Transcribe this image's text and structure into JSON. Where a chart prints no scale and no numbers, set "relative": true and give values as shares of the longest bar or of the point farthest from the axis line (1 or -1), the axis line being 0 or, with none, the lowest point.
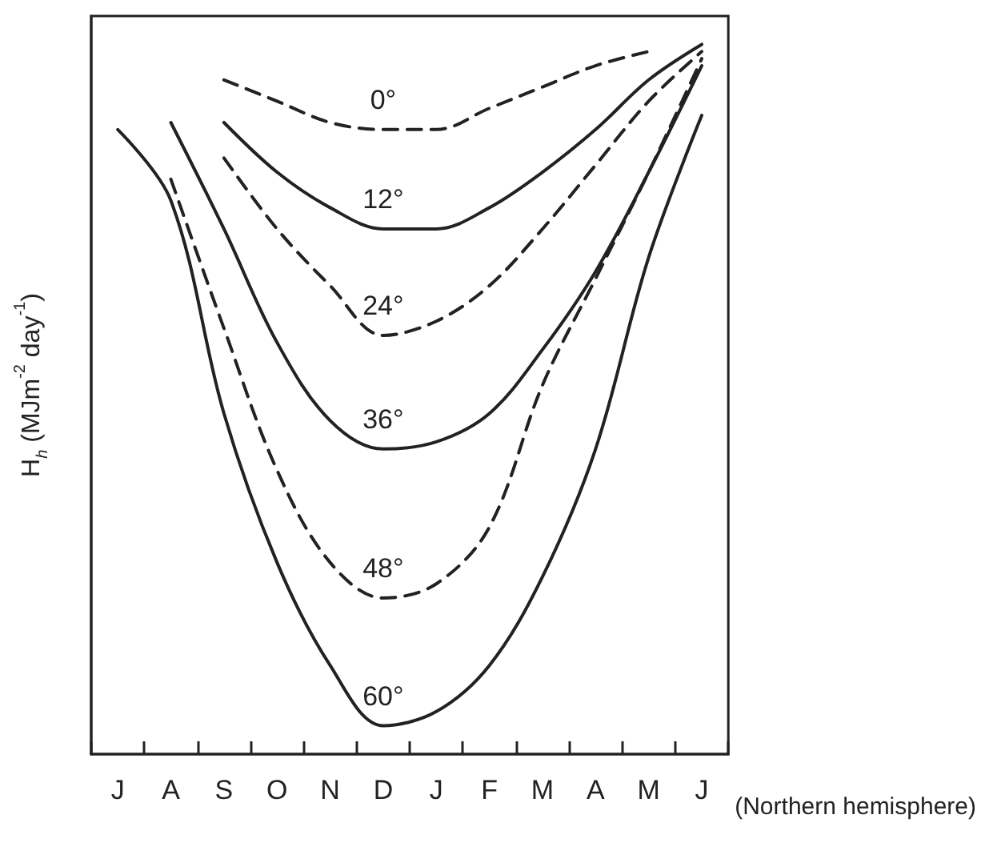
{
  "chart_data": {
    "type": "line",
    "relative": true,
    "xlabel": "(Northern hemisphere)",
    "ylabel": "H$_{h}$ (MJm$^{-2}$ day$^{-1}$)",
    "categories": [
      "J",
      "A",
      "S",
      "O",
      "N",
      "D",
      "J",
      "F",
      "M",
      "A",
      "M",
      "J"
    ],
    "legend": false,
    "grid": false,
    "marker": "none",
    "series": [
      {
        "name": "0°",
        "color": "#222222",
        "line_style": "dashed",
        "values": [
          null,
          null,
          0.95,
          0.92,
          0.89,
          0.88,
          0.88,
          0.91,
          0.94,
          0.97,
          0.99,
          null
        ]
      },
      {
        "name": "12°",
        "color": "#222222",
        "line_style": "solid",
        "values": [
          null,
          null,
          0.89,
          0.82,
          0.77,
          0.74,
          0.74,
          0.77,
          0.82,
          0.88,
          0.95,
          1.0
        ]
      },
      {
        "name": "24°",
        "color": "#222222",
        "line_style": "dashed",
        "values": [
          null,
          null,
          0.84,
          0.74,
          0.66,
          0.59,
          0.61,
          0.66,
          0.74,
          0.83,
          0.92,
          0.99
        ]
      },
      {
        "name": "36°",
        "color": "#222222",
        "line_style": "solid",
        "values": [
          null,
          0.89,
          0.74,
          0.58,
          0.47,
          0.43,
          0.44,
          0.48,
          0.57,
          0.68,
          0.82,
          0.97
        ]
      },
      {
        "name": "48°",
        "color": "#222222",
        "line_style": "dashed",
        "values": [
          null,
          0.81,
          0.6,
          0.4,
          0.27,
          0.22,
          0.24,
          0.32,
          0.52,
          0.67,
          0.82,
          0.98
        ]
      },
      {
        "name": "60°",
        "color": "#222222",
        "line_style": "solid",
        "values": [
          0.88,
          0.78,
          0.48,
          0.27,
          0.125,
          0.04,
          0.06,
          0.125,
          0.25,
          0.43,
          0.7,
          0.9
        ]
      }
    ]
  }
}
